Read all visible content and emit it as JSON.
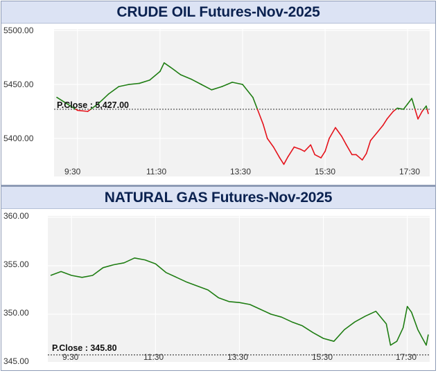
{
  "chart_data": [
    {
      "type": "line",
      "title": "CRUDE OIL Futures-Nov-2025",
      "y_ticks": [
        "5500.00",
        "5450.00",
        "5400.00"
      ],
      "x_ticks": [
        "9:30",
        "11:30",
        "13:30",
        "15:30",
        "17:30"
      ],
      "ylim": [
        5365,
        5510
      ],
      "prev_close": 5427,
      "prev_close_label": "P.Close : 5,427.00",
      "colors": {
        "above": "#1e7d12",
        "below": "#e5121b",
        "plot_bg": "#f2f2f2",
        "grid": "#ffffff"
      },
      "x_hours": [
        9.0,
        9.25,
        9.5,
        9.75,
        10.0,
        10.25,
        10.5,
        10.75,
        11.0,
        11.25,
        11.5,
        11.6,
        11.75,
        12.0,
        12.25,
        12.5,
        12.75,
        13.0,
        13.25,
        13.5,
        13.75,
        13.85,
        14.0,
        14.1,
        14.25,
        14.4,
        14.5,
        14.6,
        14.75,
        14.9,
        15.0,
        15.15,
        15.25,
        15.4,
        15.5,
        15.6,
        15.75,
        15.9,
        16.0,
        16.15,
        16.25,
        16.4,
        16.5,
        16.6,
        16.75,
        16.9,
        17.0,
        17.15,
        17.25,
        17.4,
        17.5,
        17.6,
        17.75,
        17.85,
        17.95,
        18.0
      ],
      "values": [
        5438,
        5432,
        5426,
        5425,
        5432,
        5441,
        5448,
        5450,
        5451,
        5454,
        5462,
        5470,
        5466,
        5459,
        5455,
        5450,
        5445,
        5448,
        5452,
        5450,
        5438,
        5428,
        5413,
        5400,
        5392,
        5382,
        5376,
        5383,
        5392,
        5390,
        5388,
        5394,
        5385,
        5382,
        5388,
        5400,
        5410,
        5402,
        5395,
        5385,
        5385,
        5380,
        5386,
        5398,
        5405,
        5412,
        5418,
        5425,
        5428,
        5427,
        5432,
        5437,
        5418,
        5425,
        5430,
        5423
      ]
    },
    {
      "type": "line",
      "title": "NATURAL GAS Futures-Nov-2025",
      "y_ticks": [
        "360.00",
        "355.00",
        "350.00",
        "345.00"
      ],
      "x_ticks": [
        "9:30",
        "11:30",
        "13:30",
        "15:30",
        "17:30"
      ],
      "ylim": [
        345,
        360
      ],
      "prev_close": 345.8,
      "prev_close_label": "P.Close : 345.80",
      "colors": {
        "line": "#1e7d12",
        "plot_bg": "#f2f2f2",
        "grid": "#ffffff"
      },
      "x_hours": [
        9.0,
        9.25,
        9.5,
        9.75,
        10.0,
        10.25,
        10.5,
        10.75,
        11.0,
        11.25,
        11.5,
        11.75,
        12.0,
        12.25,
        12.5,
        12.75,
        13.0,
        13.25,
        13.5,
        13.75,
        14.0,
        14.25,
        14.5,
        14.75,
        15.0,
        15.25,
        15.5,
        15.75,
        16.0,
        16.25,
        16.5,
        16.75,
        17.0,
        17.1,
        17.25,
        17.4,
        17.5,
        17.6,
        17.75,
        17.85,
        17.95,
        18.0
      ],
      "values": [
        354.0,
        354.4,
        354.0,
        353.8,
        354.0,
        354.8,
        355.1,
        355.3,
        355.8,
        355.6,
        355.2,
        354.3,
        353.8,
        353.3,
        352.9,
        352.5,
        351.7,
        351.3,
        351.2,
        351.0,
        350.5,
        350.0,
        349.7,
        349.2,
        348.8,
        348.1,
        347.5,
        347.2,
        348.4,
        349.2,
        349.8,
        350.3,
        349.0,
        346.8,
        347.2,
        348.6,
        350.8,
        350.2,
        348.4,
        347.6,
        346.8,
        347.9
      ]
    }
  ]
}
